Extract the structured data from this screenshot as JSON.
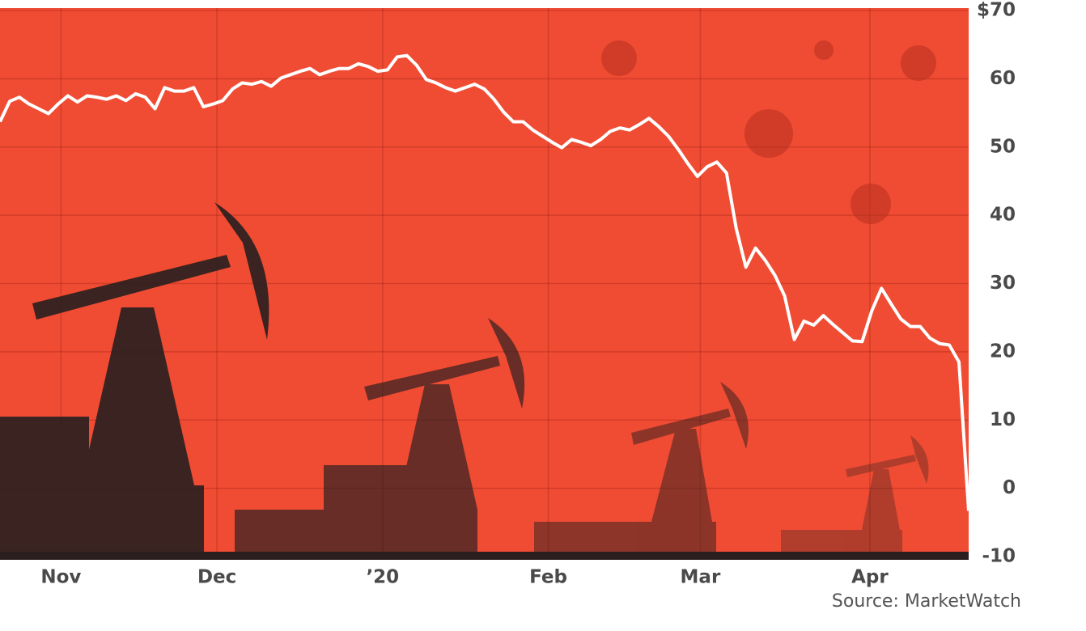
{
  "chart_data": {
    "type": "line",
    "source": "Source: MarketWatch",
    "series": [
      {
        "color": "#ffffff",
        "values": [
          53.7,
          56.7,
          57.3,
          56.3,
          55.6,
          54.9,
          56.3,
          57.5,
          56.6,
          57.5,
          57.3,
          57.0,
          57.5,
          56.8,
          57.8,
          57.3,
          55.6,
          58.7,
          58.2,
          58.2,
          58.7,
          55.9,
          56.3,
          56.8,
          58.5,
          59.4,
          59.2,
          59.6,
          58.9,
          60.1,
          60.6,
          61.1,
          61.5,
          60.6,
          61.1,
          61.5,
          61.5,
          62.2,
          61.8,
          61.1,
          61.3,
          63.2,
          63.4,
          62.0,
          59.9,
          59.4,
          58.7,
          58.2,
          58.7,
          59.2,
          58.5,
          57.0,
          55.1,
          53.7,
          53.7,
          52.5,
          51.6,
          50.7,
          49.9,
          51.1,
          50.7,
          50.2,
          51.1,
          52.3,
          52.8,
          52.5,
          53.3,
          54.2,
          53.0,
          51.6,
          49.7,
          47.6,
          45.7,
          47.1,
          47.8,
          46.2,
          38.1,
          32.4,
          35.2,
          33.4,
          31.2,
          28.2,
          21.8,
          24.5,
          23.9,
          25.3,
          24.0,
          22.8,
          21.6,
          21.5,
          26.0,
          29.3,
          27.0,
          24.8,
          23.7,
          23.7,
          22.0,
          21.2,
          21.0,
          18.5,
          -3.3
        ]
      }
    ],
    "xlim": [
      0,
      100
    ],
    "xticks": [
      {
        "value": 6.3,
        "label": "Nov"
      },
      {
        "value": 22.4,
        "label": "Dec"
      },
      {
        "value": 39.5,
        "label": "’20"
      },
      {
        "value": 56.6,
        "label": "Feb"
      },
      {
        "value": 72.3,
        "label": "Mar"
      },
      {
        "value": 89.8,
        "label": "Apr"
      }
    ],
    "ylim": [
      -10,
      70
    ],
    "yticks": [
      -10,
      0,
      10,
      20,
      30,
      40,
      50,
      {
        "value": 60,
        "label": "60"
      },
      {
        "value": 70,
        "label": "$70"
      }
    ],
    "grid": true,
    "background": "#f04b33"
  }
}
